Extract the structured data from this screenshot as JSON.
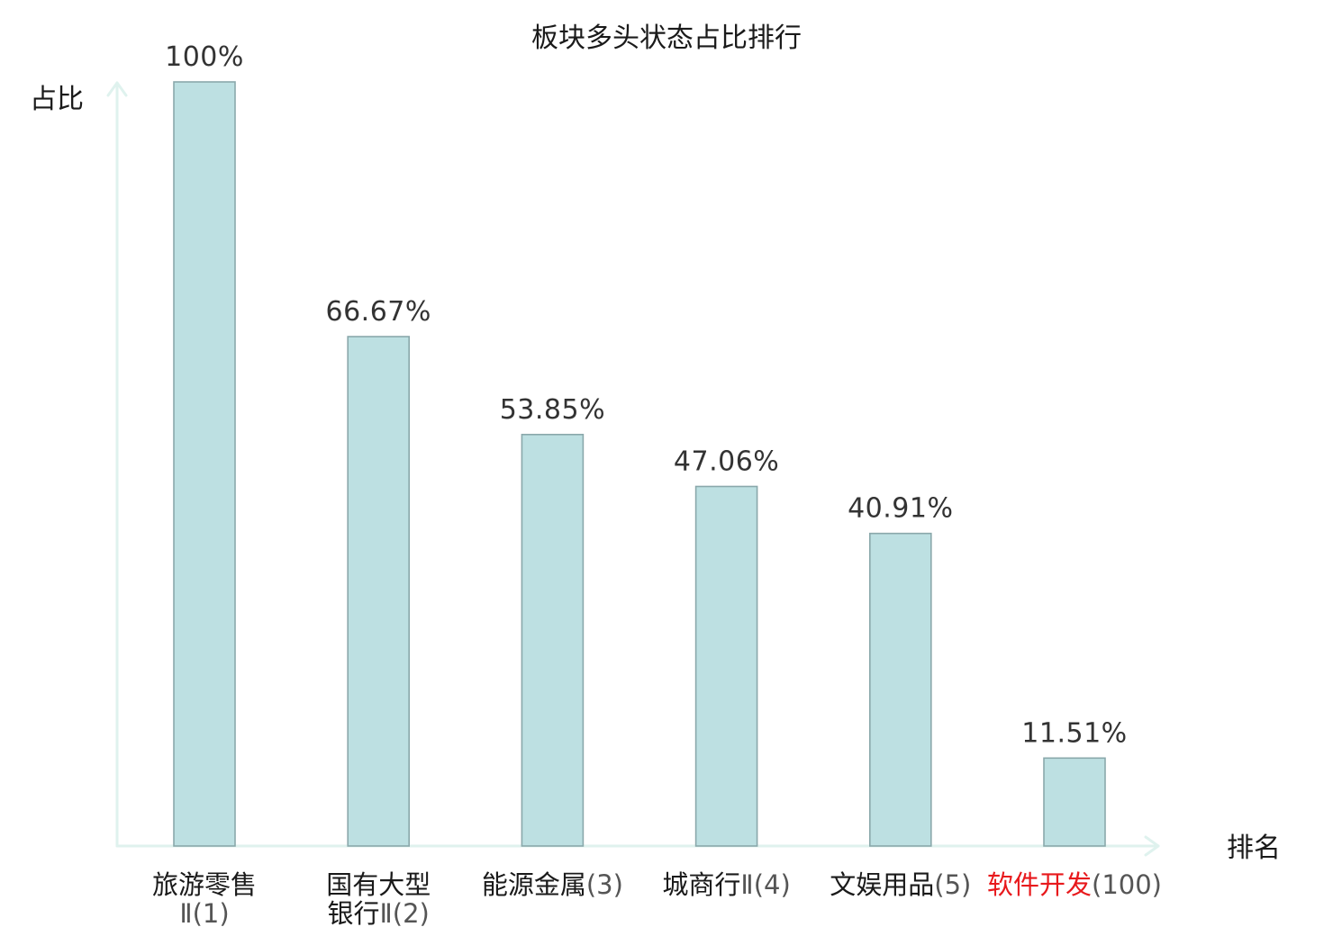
{
  "chart_data": {
    "type": "bar",
    "title": "板块多头状态占比排行",
    "ylabel": "占比",
    "xlabel": "排名",
    "ylim": [
      0,
      100
    ],
    "grid": false,
    "bars": [
      {
        "category": "旅游零售Ⅱ(1)",
        "value": 100,
        "value_label": "100%",
        "highlight": false,
        "label_lines": [
          [
            {
              "text": "旅游零售",
              "part": "name"
            }
          ],
          [
            {
              "text": "Ⅱ(1)",
              "part": "num"
            }
          ]
        ]
      },
      {
        "category": "国有大型银行Ⅱ(2)",
        "value": 66.67,
        "value_label": "66.67%",
        "highlight": false,
        "label_lines": [
          [
            {
              "text": "国有大型",
              "part": "name"
            }
          ],
          [
            {
              "text": "银行",
              "part": "name"
            },
            {
              "text": "Ⅱ(2)",
              "part": "num"
            }
          ]
        ]
      },
      {
        "category": "能源金属(3)",
        "value": 53.85,
        "value_label": "53.85%",
        "highlight": false,
        "label_lines": [
          [
            {
              "text": "能源金属",
              "part": "name"
            },
            {
              "text": "(3)",
              "part": "num"
            }
          ]
        ]
      },
      {
        "category": "城商行Ⅱ(4)",
        "value": 47.06,
        "value_label": "47.06%",
        "highlight": false,
        "label_lines": [
          [
            {
              "text": "城商行",
              "part": "name"
            },
            {
              "text": "Ⅱ(4)",
              "part": "num"
            }
          ]
        ]
      },
      {
        "category": "文娱用品(5)",
        "value": 40.91,
        "value_label": "40.91%",
        "highlight": false,
        "label_lines": [
          [
            {
              "text": "文娱用品",
              "part": "name"
            },
            {
              "text": "(5)",
              "part": "num"
            }
          ]
        ]
      },
      {
        "category": "软件开发(100)",
        "value": 11.51,
        "value_label": "11.51%",
        "highlight": true,
        "label_lines": [
          [
            {
              "text": "软件开发",
              "part": "name"
            },
            {
              "text": "(100)",
              "part": "num"
            }
          ]
        ]
      }
    ]
  },
  "colors": {
    "bar_fill": "#bde0e2",
    "bar_stroke": "#8aa8ab",
    "axis": "#dff2ee",
    "highlight_text": "#e8191c",
    "text": "#1a1a1a",
    "value_text": "#333333",
    "category_number": "#555555"
  }
}
